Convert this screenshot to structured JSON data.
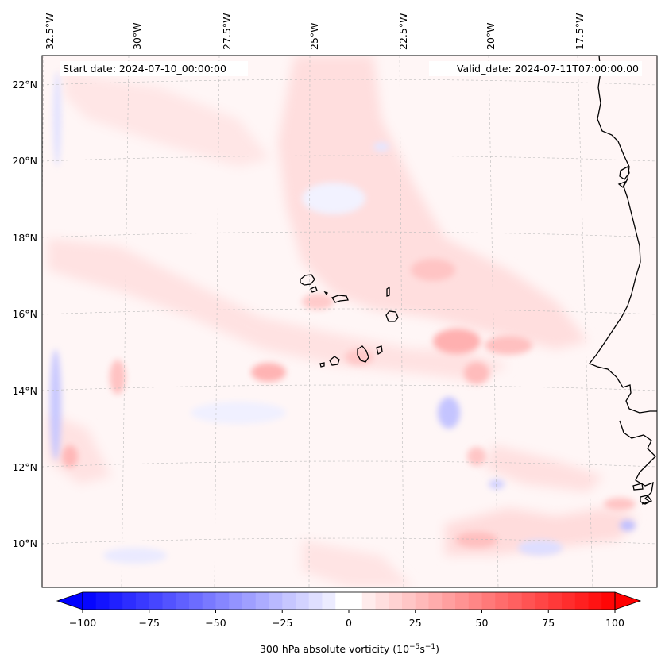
{
  "map": {
    "start_date": "Start date: 2024-07-10_00:00:00",
    "valid_date": "Valid_date: 2024-07-11T07:00:00.00",
    "lon_labels": [
      "32.5°W",
      "30°W",
      "27.5°W",
      "25°W",
      "22.5°W",
      "20°W",
      "17.5°W"
    ],
    "lat_labels": [
      "22°N",
      "20°N",
      "18°N",
      "16°N",
      "14°N",
      "12°N",
      "10°N"
    ],
    "gridlines": true,
    "field_colors": {
      "positive": "#ff0000",
      "negative": "#0000ff",
      "zero": "#ffffff"
    }
  },
  "colorbar": {
    "ticks": [
      -100,
      -75,
      -50,
      -25,
      0,
      25,
      50,
      75,
      100
    ],
    "tick_labels": [
      "−100",
      "−75",
      "−50",
      "−25",
      "0",
      "25",
      "50",
      "75",
      "100"
    ],
    "range": [
      -100,
      100
    ],
    "extend": "both",
    "label_main": "300 hPa absolute vorticity (10",
    "label_exp1": "−5",
    "label_mid": "s",
    "label_exp2": "−1",
    "label_end": ")"
  }
}
